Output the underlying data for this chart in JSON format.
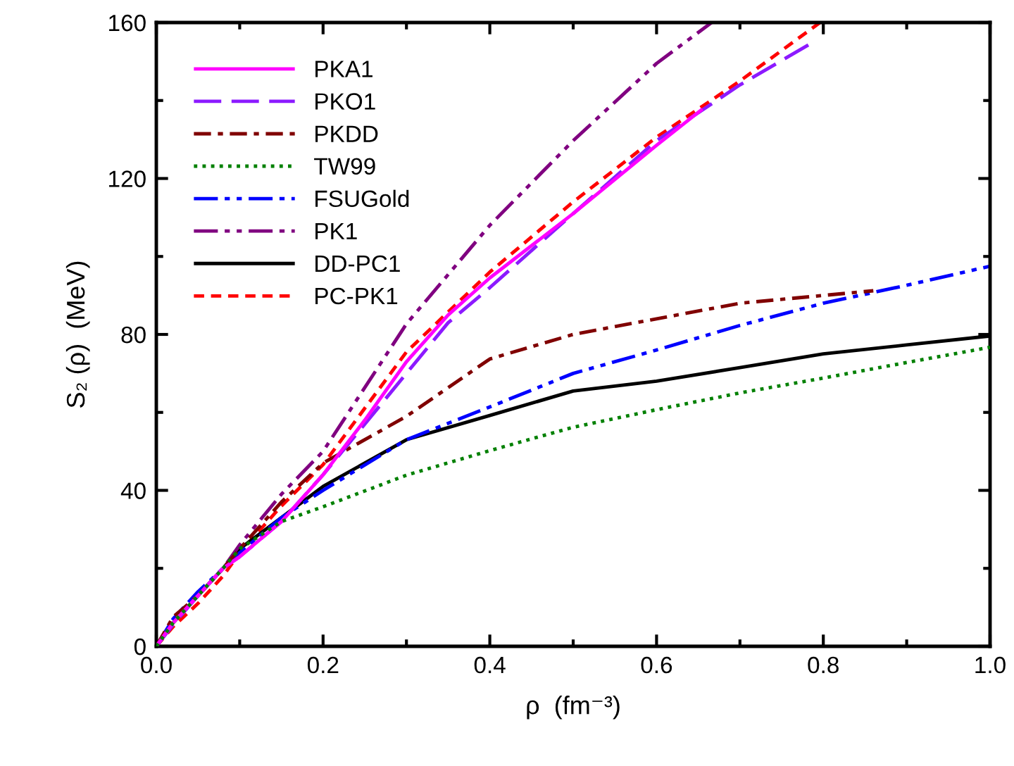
{
  "chart_data": {
    "type": "line",
    "xlabel": "ρ  (fm⁻³)",
    "ylabel": "S₂ (ρ)  (MeV)",
    "xlim": [
      0,
      1
    ],
    "ylim": [
      0,
      160
    ],
    "xticks": [
      {
        "value": 0,
        "label": "0.0"
      },
      0.2,
      0.4,
      0.6,
      0.8,
      {
        "value": 1,
        "label": "1.0"
      }
    ],
    "yticks": [
      0,
      40,
      80,
      120,
      160
    ],
    "grid": false,
    "legend": "top left",
    "marker": "none",
    "series": [
      {
        "name": "PKA1",
        "color": "#ff00ff",
        "line_style": "solid",
        "x": [
          0,
          0.02,
          0.05,
          0.08,
          0.1,
          0.15,
          0.2,
          0.25,
          0.3,
          0.35,
          0.4,
          0.5,
          0.6,
          0.655
        ],
        "values": [
          0,
          6,
          13,
          20,
          23,
          32,
          44,
          58,
          73,
          85,
          94.5,
          111,
          128.5,
          137.8
        ]
      },
      {
        "name": "PKO1",
        "color": "#8c1aff",
        "line_style": "dashed",
        "x": [
          0,
          0.02,
          0.05,
          0.08,
          0.1,
          0.15,
          0.2,
          0.25,
          0.3,
          0.35,
          0.4,
          0.5,
          0.6,
          0.7,
          0.788
        ],
        "values": [
          0,
          5.5,
          13,
          20,
          23,
          32,
          44,
          57,
          70,
          83,
          92,
          111,
          129.7,
          144,
          155
        ]
      },
      {
        "name": "PKDD",
        "color": "#800000",
        "line_style": "dashdot",
        "x": [
          0,
          0.02,
          0.05,
          0.08,
          0.1,
          0.15,
          0.2,
          0.3,
          0.4,
          0.5,
          0.6,
          0.7,
          0.8,
          0.86
        ],
        "values": [
          0,
          7.5,
          13,
          20,
          25,
          37,
          47,
          59,
          73.7,
          80,
          84,
          88,
          90,
          91.2
        ]
      },
      {
        "name": "TW99",
        "color": "#008000",
        "line_style": "dotted",
        "x": [
          0,
          0.02,
          0.05,
          0.08,
          0.1,
          0.15,
          0.2,
          0.3,
          0.4,
          0.5,
          0.6,
          0.7,
          0.8,
          0.9,
          1.0
        ],
        "values": [
          0,
          6,
          13,
          20,
          25,
          32,
          35.8,
          43.9,
          50.2,
          56.2,
          60.7,
          65,
          68.8,
          72.8,
          76.7
        ]
      },
      {
        "name": "FSUGold",
        "color": "#0000ff",
        "line_style": "dashdotdot",
        "x": [
          0,
          0.02,
          0.05,
          0.08,
          0.1,
          0.15,
          0.2,
          0.3,
          0.4,
          0.5,
          0.6,
          0.7,
          0.8,
          0.9,
          1.0
        ],
        "values": [
          0,
          7,
          14,
          20,
          24,
          33,
          40,
          53,
          61.4,
          70,
          76,
          82.3,
          88,
          92.6,
          97.5
        ]
      },
      {
        "name": "PK1",
        "color": "#800080",
        "line_style": "dashdotdot",
        "x": [
          0,
          0.02,
          0.05,
          0.08,
          0.1,
          0.15,
          0.2,
          0.3,
          0.4,
          0.5,
          0.6,
          0.666
        ],
        "values": [
          0,
          6,
          13,
          20,
          26,
          39,
          50,
          82.7,
          108,
          129.7,
          149.5,
          160
        ]
      },
      {
        "name": "DD-PC1",
        "color": "#000000",
        "line_style": "solid",
        "x": [
          0,
          0.02,
          0.05,
          0.08,
          0.1,
          0.15,
          0.2,
          0.3,
          0.4,
          0.5,
          0.6,
          0.7,
          0.8,
          0.9,
          1.0
        ],
        "values": [
          0,
          6,
          13,
          20,
          25,
          33,
          41,
          53,
          59.2,
          65.5,
          68,
          71.5,
          75,
          77.3,
          79.6
        ]
      },
      {
        "name": "PC-PK1",
        "color": "#ff0000",
        "line_style": "shortdash",
        "x": [
          0,
          0.02,
          0.05,
          0.08,
          0.1,
          0.15,
          0.2,
          0.3,
          0.4,
          0.5,
          0.6,
          0.7,
          0.796
        ],
        "values": [
          0,
          5,
          11,
          18,
          24,
          36,
          46.6,
          75.5,
          96,
          114,
          130.6,
          145,
          160
        ]
      }
    ]
  }
}
